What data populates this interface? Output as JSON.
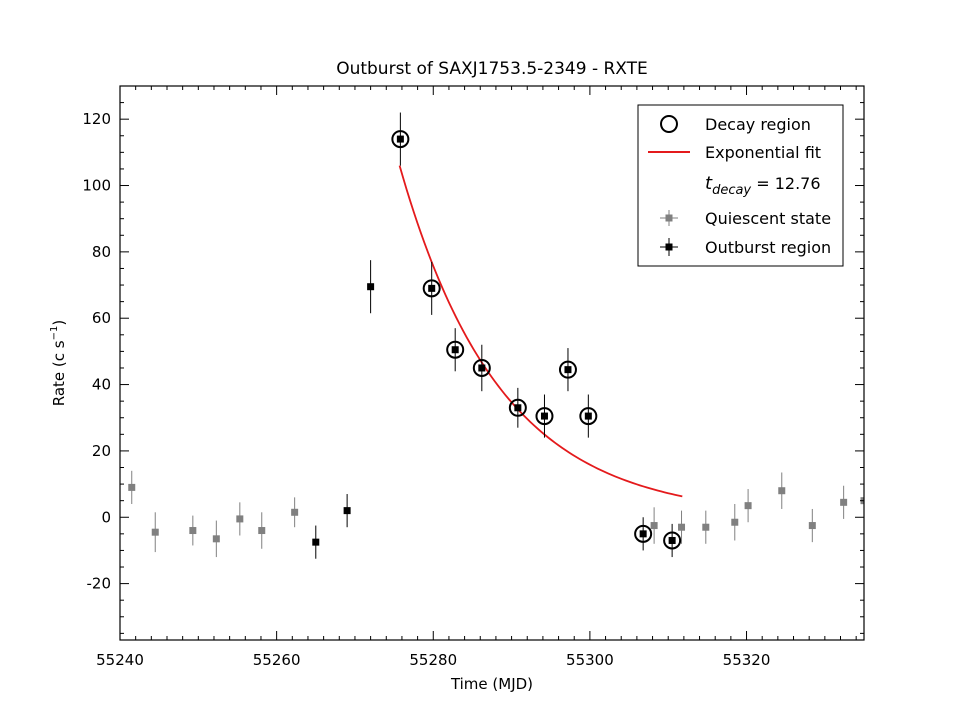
{
  "chart_data": {
    "type": "scatter",
    "title": "Outburst of SAXJ1753.5-2349 - RXTE",
    "xlabel": "Time (MJD)",
    "ylabel_main": "Rate (c s",
    "ylabel_exp": "−1",
    "ylabel_close": ")",
    "xlim": [
      55240,
      55335
    ],
    "ylim": [
      -37,
      130
    ],
    "x_ticks": [
      55240,
      55260,
      55280,
      55300,
      55320
    ],
    "x_tick_labels": [
      "55240",
      "55260",
      "55280",
      "55300",
      "55320"
    ],
    "y_ticks": [
      -20,
      0,
      20,
      40,
      60,
      80,
      100,
      120
    ],
    "y_tick_labels": [
      "-20",
      "0",
      "20",
      "40",
      "60",
      "80",
      "100",
      "120"
    ],
    "grid": false,
    "legend_position": "top-right",
    "legend": {
      "decay": "Decay region",
      "fit": "Exponential fit",
      "tdecay_t": "t",
      "tdecay_sub": "decay",
      "tdecay_value": " = 12.76",
      "quiescent": "Quiescent state",
      "outburst": "Outburst region"
    },
    "colors": {
      "quiescent": "#808080",
      "outburst": "#000000",
      "fit": "#e41a1c"
    },
    "series": [
      {
        "name": "Quiescent state",
        "x": [
          55241.5,
          55244.5,
          55249.3,
          55252.3,
          55255.3,
          55258.1,
          55262.3,
          55308.2,
          55311.7,
          55314.8,
          55318.5,
          55320.2,
          55324.5,
          55328.4,
          55332.4,
          55335.0
        ],
        "y": [
          9,
          -4.5,
          -4,
          -6.5,
          -0.5,
          -4,
          1.5,
          -2.5,
          -3,
          -3,
          -1.5,
          3.5,
          8,
          -2.5,
          4.5,
          5
        ],
        "err": [
          5,
          6,
          4.5,
          5.5,
          5,
          5.5,
          4.5,
          5.5,
          5,
          5,
          5.5,
          5,
          5.5,
          5,
          5,
          5
        ]
      },
      {
        "name": "Outburst region",
        "x": [
          55265.0,
          55269.0,
          55272.0,
          55275.8,
          55279.8,
          55282.8,
          55286.2,
          55290.8,
          55294.2,
          55297.2,
          55299.8,
          55306.8,
          55310.5
        ],
        "y": [
          -7.5,
          2,
          69.5,
          114,
          69,
          50.5,
          45,
          33,
          30.5,
          44.5,
          30.5,
          -5,
          -7
        ],
        "err": [
          5,
          5,
          8,
          8,
          8,
          6.5,
          7,
          6,
          6.5,
          6.5,
          6.5,
          5,
          5
        ]
      },
      {
        "name": "Decay region",
        "x": [
          55275.8,
          55279.8,
          55282.8,
          55286.2,
          55290.8,
          55294.2,
          55297.2,
          55299.8,
          55306.8,
          55310.5
        ],
        "y": [
          114,
          69,
          50.5,
          45,
          33,
          30.5,
          44.5,
          30.5,
          -5,
          -7
        ]
      }
    ],
    "fit": {
      "type": "exponential",
      "x_start": 55275.7,
      "x_end": 55311.8,
      "y_start": 106,
      "y_end": 6.3
    }
  }
}
